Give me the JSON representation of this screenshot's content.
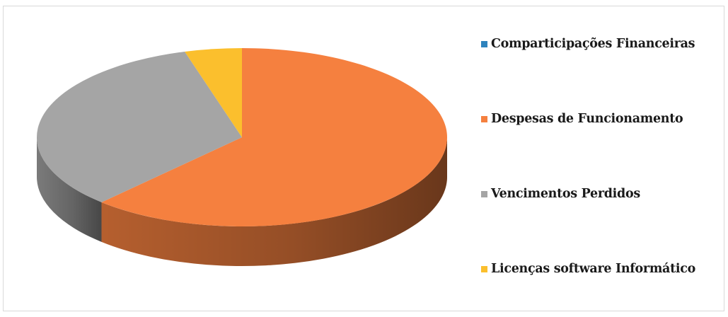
{
  "chart_data": {
    "type": "pie",
    "title": "",
    "three_d": true,
    "legend_position": "right",
    "start_angle_deg": 90,
    "direction": "clockwise",
    "categories": [
      "Comparticipações Financeiras",
      "Despesas de Funcionamento",
      "Vencimentos Perdidos",
      "Licenças software Informático"
    ],
    "values": [
      0,
      62,
      33.5,
      4.5
    ],
    "colors": [
      "#2e83bd",
      "#f5803f",
      "#a5a5a5",
      "#fbbf2d"
    ]
  }
}
